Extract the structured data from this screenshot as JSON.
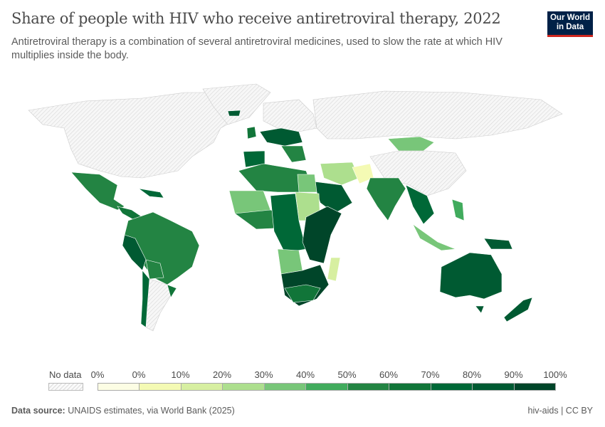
{
  "header": {
    "title": "Share of people with HIV who receive antiretroviral therapy, 2022",
    "subtitle": "Antiretroviral therapy is a combination of several antiretroviral medicines, used to slow the rate at which HIV multiplies inside the body.",
    "logo_text": "Our World in Data"
  },
  "legend": {
    "no_data_label": "No data",
    "tick_labels": [
      "0%",
      "0%",
      "10%",
      "20%",
      "30%",
      "40%",
      "50%",
      "60%",
      "70%",
      "80%",
      "90%",
      "100%"
    ],
    "colors": [
      "#fcfde4",
      "#f4fab4",
      "#d7efa1",
      "#addf8e",
      "#78c679",
      "#41ab5d",
      "#238443",
      "#117539",
      "#006837",
      "#005a32",
      "#004529"
    ],
    "no_data_color": "#e6e6e6"
  },
  "footer": {
    "source_label": "Data source:",
    "source_text": "UNAIDS estimates, via World Bank (2025)",
    "right_text": "hiv-aids | CC BY"
  }
}
